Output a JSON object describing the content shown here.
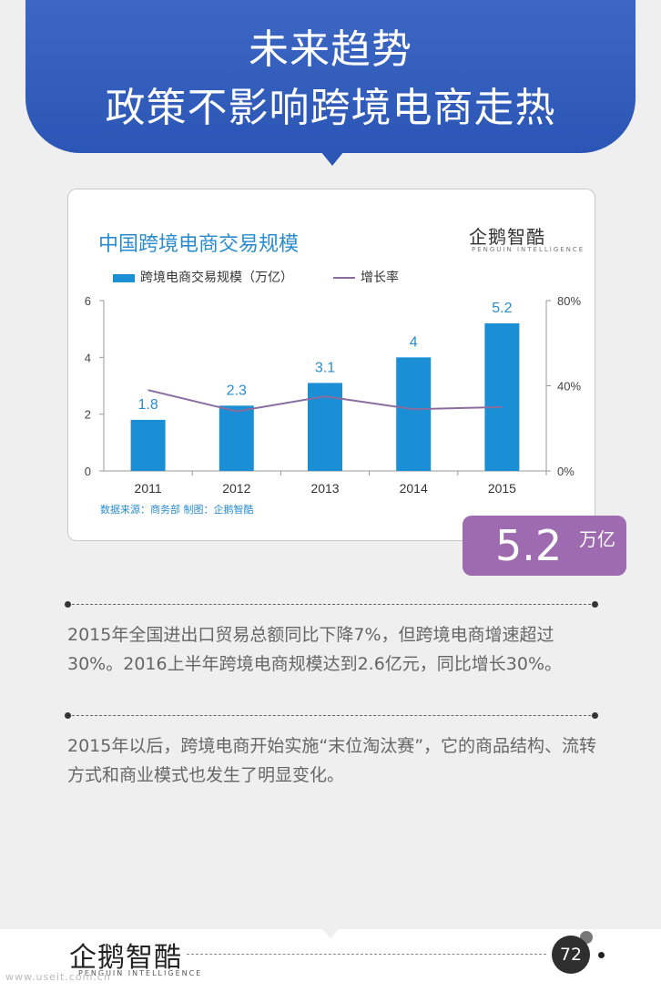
{
  "header": {
    "title_line1": "未来趋势",
    "title_line2": "政策不影响跨境电商走热"
  },
  "chart_data": {
    "type": "bar",
    "title": "中国跨境电商交易规模",
    "categories": [
      "2011",
      "2012",
      "2013",
      "2014",
      "2015"
    ],
    "series": [
      {
        "name": "跨境电商交易规模（万亿）",
        "type": "bar",
        "axis": "left",
        "values": [
          1.8,
          2.3,
          3.1,
          4,
          5.2
        ],
        "color": "#1a8fd5"
      },
      {
        "name": "增长率",
        "type": "line",
        "axis": "right",
        "values": [
          0.38,
          0.28,
          0.35,
          0.29,
          0.3
        ],
        "color": "#8a6d9e"
      }
    ],
    "bar_labels": [
      "1.8",
      "2.3",
      "3.1",
      "4",
      "5.2"
    ],
    "y_left": {
      "ylim": [
        0,
        6
      ],
      "ticks": [
        "0",
        "2",
        "4",
        "6"
      ]
    },
    "y_right": {
      "ylim": [
        0,
        0.8
      ],
      "ticks": [
        "0%",
        "40%",
        "80%"
      ]
    },
    "legend": "top-left",
    "source": "数据来源：商务部 制图：企鹅智酷"
  },
  "logo": {
    "name": "企鹅智酷",
    "subtitle": "PENGUIN INTELLIGENCE"
  },
  "callout": {
    "value": "5.2",
    "unit": "万亿"
  },
  "paragraphs": [
    "2015年全国进出口贸易总额同比下降7%，但跨境电商增速超过30%。2016上半年跨境电商规模达到2.6亿元，同比增长30%。",
    "2015年以后，跨境电商开始实施“末位淘汰赛”，它的商品结构、流转方式和商业模式也发生了明显变化。"
  ],
  "footer": {
    "page_number": "72",
    "watermark": "www.useit.com.cn"
  },
  "colors": {
    "header_blue": "#2b56b5",
    "bar_blue": "#1a8fd5",
    "line_purple": "#8a6d9e",
    "callout_purple": "#9e6ab0"
  }
}
